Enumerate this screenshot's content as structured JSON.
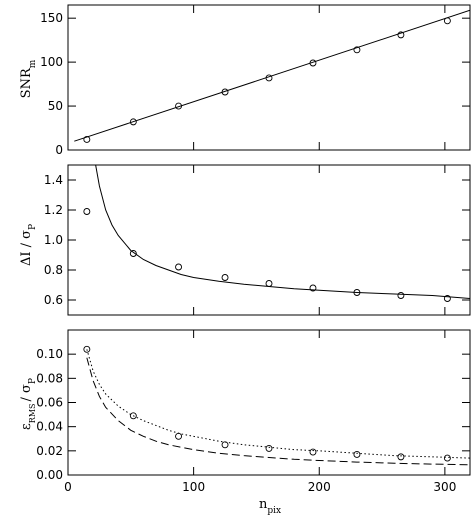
{
  "chart_data": [
    {
      "type": "scatter",
      "ylabel_main": "SNR",
      "ylabel_sub": "m",
      "xlim": [
        0,
        320
      ],
      "ylim": [
        0,
        165
      ],
      "yticks": [
        0,
        50,
        100,
        150
      ],
      "ytick_labels": [
        "0",
        "50",
        "100",
        "150"
      ],
      "series": [
        {
          "kind": "points",
          "x": [
            15,
            52,
            88,
            125,
            160,
            195,
            230,
            265,
            302
          ],
          "y": [
            12,
            32,
            50,
            66,
            82,
            99,
            114,
            131,
            147
          ]
        },
        {
          "kind": "solid",
          "x": [
            5,
            320
          ],
          "y": [
            10,
            159
          ]
        }
      ]
    },
    {
      "type": "scatter",
      "ylabel_main": "ΔI / σ",
      "ylabel_sub": "P",
      "xlim": [
        0,
        320
      ],
      "ylim": [
        0.5,
        1.5
      ],
      "yticks": [
        0.6,
        0.8,
        1.0,
        1.2,
        1.4
      ],
      "ytick_labels": [
        "0.6",
        "0.8",
        "1.0",
        "1.2",
        "1.4"
      ],
      "series": [
        {
          "kind": "points",
          "x": [
            15,
            52,
            88,
            125,
            160,
            195,
            230,
            265,
            302
          ],
          "y": [
            1.19,
            0.91,
            0.82,
            0.75,
            0.71,
            0.68,
            0.65,
            0.63,
            0.61
          ]
        },
        {
          "kind": "solid",
          "x": [
            22,
            25,
            30,
            35,
            40,
            50,
            60,
            70,
            80,
            90,
            100,
            120,
            140,
            160,
            180,
            200,
            230,
            260,
            290,
            320
          ],
          "y": [
            1.5,
            1.36,
            1.2,
            1.1,
            1.03,
            0.93,
            0.87,
            0.83,
            0.8,
            0.77,
            0.75,
            0.725,
            0.705,
            0.69,
            0.675,
            0.665,
            0.65,
            0.64,
            0.63,
            0.61
          ]
        }
      ]
    },
    {
      "type": "scatter",
      "ylabel_main": "ε",
      "ylabel_eps_sub": "RMS",
      "ylabel_rest": "/ σ",
      "ylabel_sub": "P",
      "xlabel_main": "n",
      "xlabel_sub": "pix",
      "xlim": [
        0,
        320
      ],
      "ylim": [
        0,
        0.12
      ],
      "xticks": [
        0,
        100,
        200,
        300
      ],
      "xtick_labels": [
        "0",
        "100",
        "200",
        "300"
      ],
      "yticks": [
        0,
        0.02,
        0.04,
        0.06,
        0.08,
        0.1
      ],
      "ytick_labels": [
        "0.00",
        "0.02",
        "0.04",
        "0.06",
        "0.08",
        "0.10"
      ],
      "series": [
        {
          "kind": "points",
          "x": [
            15,
            52,
            88,
            125,
            160,
            195,
            230,
            265,
            302
          ],
          "y": [
            0.104,
            0.049,
            0.032,
            0.025,
            0.022,
            0.019,
            0.017,
            0.015,
            0.014
          ]
        },
        {
          "kind": "dotted",
          "x": [
            15,
            20,
            25,
            30,
            40,
            50,
            60,
            70,
            80,
            90,
            100,
            120,
            140,
            160,
            180,
            200,
            230,
            260,
            290,
            320
          ],
          "y": [
            0.104,
            0.086,
            0.075,
            0.067,
            0.057,
            0.05,
            0.045,
            0.041,
            0.037,
            0.034,
            0.032,
            0.028,
            0.025,
            0.023,
            0.021,
            0.02,
            0.018,
            0.016,
            0.015,
            0.014
          ]
        },
        {
          "kind": "dashed",
          "x": [
            15,
            20,
            25,
            30,
            40,
            50,
            60,
            70,
            80,
            90,
            100,
            120,
            140,
            160,
            180,
            200,
            230,
            260,
            290,
            320
          ],
          "y": [
            0.097,
            0.078,
            0.065,
            0.056,
            0.045,
            0.037,
            0.032,
            0.028,
            0.025,
            0.023,
            0.021,
            0.018,
            0.016,
            0.0145,
            0.013,
            0.012,
            0.0107,
            0.0097,
            0.009,
            0.0085
          ]
        }
      ]
    }
  ]
}
